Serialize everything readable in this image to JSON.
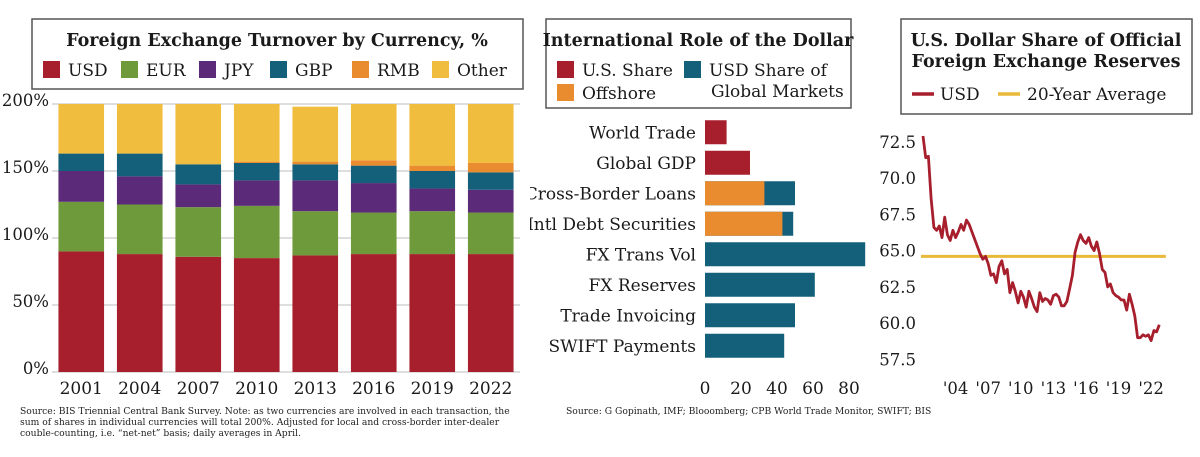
{
  "chart_data": [
    {
      "type": "bar",
      "stacked": true,
      "title": "Foreign Exchange Turnover by Currency, %",
      "categories": [
        "2001",
        "2004",
        "2007",
        "2010",
        "2013",
        "2016",
        "2019",
        "2022"
      ],
      "ylim": [
        0,
        200
      ],
      "yticks": [
        0,
        50,
        100,
        150,
        200
      ],
      "ytick_labels": [
        "0%",
        "50%",
        "100%",
        "150%",
        "200%"
      ],
      "series": [
        {
          "name": "USD",
          "color": "#a71e2d",
          "values": [
            90,
            88,
            86,
            85,
            87,
            88,
            88,
            88
          ]
        },
        {
          "name": "EUR",
          "color": "#6f9a3b",
          "values": [
            37,
            37,
            37,
            39,
            33,
            31,
            32,
            31
          ]
        },
        {
          "name": "JPY",
          "color": "#5b2a78",
          "values": [
            23,
            21,
            17,
            19,
            23,
            22,
            17,
            17
          ]
        },
        {
          "name": "GBP",
          "color": "#14607a",
          "values": [
            13,
            17,
            15,
            13,
            12,
            13,
            13,
            13
          ]
        },
        {
          "name": "RMB",
          "color": "#e98b2f",
          "values": [
            0,
            0,
            0,
            1,
            2,
            4,
            4,
            7
          ]
        },
        {
          "name": "Other",
          "color": "#f1bd3e",
          "values": [
            37,
            37,
            45,
            43,
            41,
            42,
            46,
            44
          ]
        }
      ],
      "source": "Source: BIS Triennial Central Bank Survey. Note: as two currencies are involved in each transaction, the sum of shares in individual currencies will total 200%. Adjusted for local and cross-border inter-dealer couble-counting, i.e. “net-net” basis; daily averages in April."
    },
    {
      "type": "bar",
      "orientation": "horizontal",
      "title": "International Role of the Dollar",
      "categories": [
        "World Trade",
        "Global GDP",
        "Cross-Border Loans",
        "Intl Debt Securities",
        "FX Trans Vol",
        "FX Reserves",
        "Trade Invoicing",
        "SWIFT Payments"
      ],
      "xlim": [
        0,
        90
      ],
      "xticks": [
        0,
        20,
        40,
        60,
        80
      ],
      "legend": [
        "U.S. Share",
        "USD Share of Global Markets",
        "Offshore"
      ],
      "legend_line2": "Global Markets",
      "legend_line1": "USD Share of",
      "series": [
        {
          "name": "U.S. Share",
          "color": "#a71e2d",
          "values": [
            12,
            25,
            null,
            null,
            null,
            null,
            null,
            null
          ]
        },
        {
          "name": "USD Share of Global Markets",
          "color": "#14607a",
          "values": [
            null,
            null,
            50,
            49,
            89,
            61,
            50,
            44
          ]
        },
        {
          "name": "Offshore",
          "color": "#e98b2f",
          "values": [
            null,
            null,
            33,
            43,
            null,
            null,
            null,
            null
          ]
        }
      ],
      "source": "Source: G Gopinath, IMF; Blooomberg; CPB World Trade Monitor, SWIFT; BIS"
    },
    {
      "type": "line",
      "title_line1": "U.S. Dollar Share of Official",
      "title_line2": "Foreign Exchange Reserves",
      "ylim": [
        56.5,
        74
      ],
      "yticks": [
        57.5,
        60.0,
        62.5,
        65.0,
        67.5,
        70.0,
        72.5
      ],
      "ytick_labels": [
        "57.5",
        "60.0",
        "62.5",
        "65.0",
        "67.5",
        "70.0",
        "72.5"
      ],
      "xlim": [
        2001,
        2023
      ],
      "xticks": [
        2004,
        2007,
        2010,
        2013,
        2016,
        2019,
        2022
      ],
      "xtick_labels": [
        "'04",
        "'07",
        "'10",
        "'13",
        "'16",
        "'19",
        "'22"
      ],
      "series": [
        {
          "name": "USD",
          "color": "#a71e2d",
          "x": [
            2001,
            2001.25,
            2001.5,
            2001.75,
            2002,
            2002.25,
            2002.5,
            2002.75,
            2003,
            2003.25,
            2003.5,
            2003.75,
            2004,
            2004.25,
            2004.5,
            2004.75,
            2005,
            2005.25,
            2005.5,
            2005.75,
            2006,
            2006.25,
            2006.5,
            2006.75,
            2007,
            2007.25,
            2007.5,
            2007.75,
            2008,
            2008.25,
            2008.5,
            2008.75,
            2009,
            2009.25,
            2009.5,
            2009.75,
            2010,
            2010.25,
            2010.5,
            2010.75,
            2011,
            2011.25,
            2011.5,
            2011.75,
            2012,
            2012.25,
            2012.5,
            2012.75,
            2013,
            2013.25,
            2013.5,
            2013.75,
            2014,
            2014.25,
            2014.5,
            2014.75,
            2015,
            2015.25,
            2015.5,
            2015.75,
            2016,
            2016.25,
            2016.5,
            2016.75,
            2017,
            2017.25,
            2017.5,
            2017.75,
            2018,
            2018.25,
            2018.5,
            2018.75,
            2019,
            2019.25,
            2019.5,
            2019.75,
            2020,
            2020.25,
            2020.5,
            2020.75,
            2021,
            2021.25,
            2021.5,
            2021.75,
            2022,
            2022.25,
            2022.5,
            2022.75
          ],
          "values": [
            72.9,
            71.4,
            71.5,
            68.6,
            66.6,
            66.4,
            66.7,
            65.9,
            67.3,
            66.1,
            65.7,
            66.4,
            65.9,
            66.3,
            66.8,
            66.4,
            67.1,
            66.8,
            66.3,
            65.8,
            65.3,
            64.8,
            64.4,
            64.6,
            64.1,
            63.3,
            63.4,
            62.8,
            63.9,
            64.3,
            63.4,
            63.7,
            62.1,
            62.8,
            62.2,
            61.4,
            62.2,
            61.8,
            61.1,
            62.2,
            61.7,
            61.1,
            60.8,
            62.1,
            61.5,
            61.7,
            61.6,
            61.3,
            61.9,
            62.0,
            61.8,
            61.2,
            61.2,
            61.5,
            62.4,
            63.3,
            64.9,
            65.6,
            66.1,
            65.7,
            65.5,
            65.9,
            65.3,
            65.0,
            65.6,
            64.8,
            63.7,
            63.5,
            62.5,
            62.7,
            62.1,
            61.9,
            61.8,
            61.6,
            61.6,
            60.9,
            62.0,
            61.3,
            60.5,
            59.0,
            59.0,
            59.2,
            59.1,
            59.2,
            58.8,
            59.5,
            59.4,
            59.9
          ]
        },
        {
          "name": "20-Year Average",
          "color": "#e9b93a",
          "values": [
            64.6
          ]
        }
      ]
    }
  ]
}
